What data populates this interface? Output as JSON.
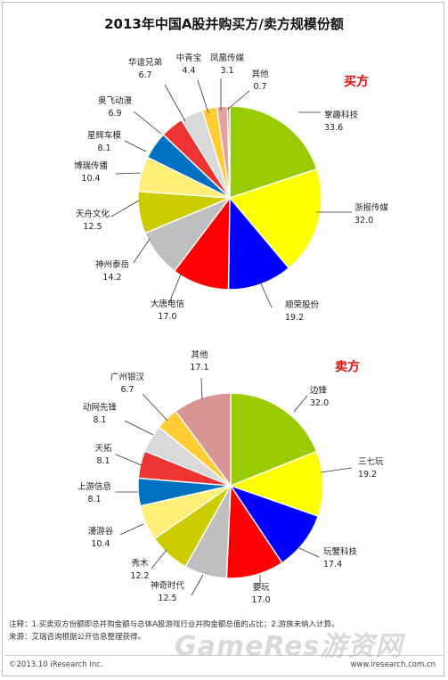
{
  "title": "2013年中国A股并购买方/卖方规模份额",
  "chart_data": [
    {
      "type": "pie",
      "section_label": "买方",
      "slices": [
        {
          "label": "掌趣科技",
          "value": 33.6,
          "color": "#99cc00"
        },
        {
          "label": "浙报传媒",
          "value": 32.0,
          "color": "#ffff00"
        },
        {
          "label": "顺荣股份",
          "value": 19.2,
          "color": "#0000ff"
        },
        {
          "label": "大唐电信",
          "value": 17.0,
          "color": "#ff0000"
        },
        {
          "label": "神州泰岳",
          "value": 14.2,
          "color": "#bfbfbf"
        },
        {
          "label": "天舟文化",
          "value": 12.5,
          "color": "#cccc00"
        },
        {
          "label": "博瑞传播",
          "value": 10.4,
          "color": "#ffee77"
        },
        {
          "label": "星辉车模",
          "value": 8.1,
          "color": "#0070c0"
        },
        {
          "label": "奥飞动漫",
          "value": 6.9,
          "color": "#ee3333"
        },
        {
          "label": "华谊兄弟",
          "value": 6.7,
          "color": "#d9d9d9"
        },
        {
          "label": "中青宝",
          "value": 4.4,
          "color": "#ffcc33"
        },
        {
          "label": "凤凰传媒",
          "value": 3.1,
          "color": "#e6a0a0"
        },
        {
          "label": "其他",
          "value": 0.7,
          "color": "#9a9a9a"
        }
      ]
    },
    {
      "type": "pie",
      "section_label": "卖方",
      "slices": [
        {
          "label": "边锋",
          "value": 32.0,
          "color": "#99cc00"
        },
        {
          "label": "三七玩",
          "value": 19.2,
          "color": "#ffff00"
        },
        {
          "label": "玩蟹科技",
          "value": 17.4,
          "color": "#0000ff"
        },
        {
          "label": "要玩",
          "value": 17.0,
          "color": "#ff0000"
        },
        {
          "label": "神奇时代",
          "value": 12.5,
          "color": "#bfbfbf"
        },
        {
          "label": "秀木",
          "value": 12.2,
          "color": "#cccc00"
        },
        {
          "label": "漫游谷",
          "value": 10.4,
          "color": "#ffee77"
        },
        {
          "label": "上游信息",
          "value": 8.1,
          "color": "#0070c0"
        },
        {
          "label": "天拓",
          "value": 8.1,
          "color": "#ee3333"
        },
        {
          "label": "动网先锋",
          "value": 8.1,
          "color": "#d9d9d9"
        },
        {
          "label": "广州银汉",
          "value": 6.7,
          "color": "#ffcc33"
        },
        {
          "label": "其他",
          "value": 17.1,
          "color": "#d99594"
        }
      ]
    }
  ],
  "notes": {
    "line1": "注释：1.买卖双方份额即总并购金额与总体A股游戏行业并购金额总值的占比；2.游族未纳入计算。",
    "line2": "来源：艾瑞咨询根据公开信息整理获得。"
  },
  "footer": {
    "copyright": "©2013.10 iResearch Inc.",
    "site": "www.iresearch.com.cn",
    "watermark": "GameRes游资网"
  }
}
